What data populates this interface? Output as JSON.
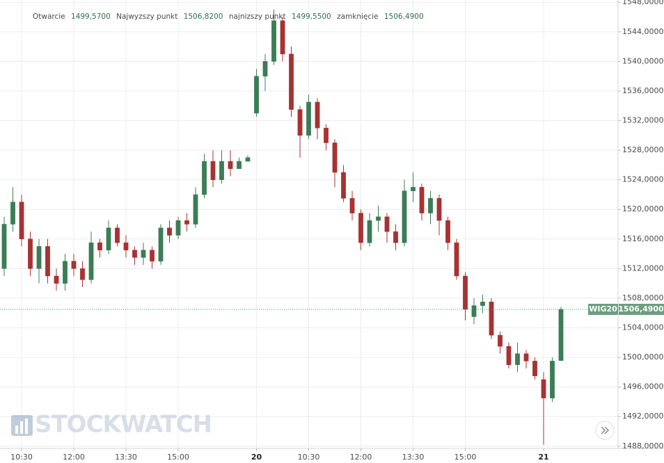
{
  "chart_data": {
    "type": "candlestick",
    "ohlc_legend": [
      {
        "label": "Otwarcie",
        "value": "1499,5700"
      },
      {
        "label": "Najwyzszy punkt",
        "value": "1506,8200"
      },
      {
        "label": "najnizszy punkt",
        "value": "1499,5500"
      },
      {
        "label": "zamknięcie",
        "value": "1506,4900"
      }
    ],
    "open": [
      1512,
      1518,
      1521,
      1516,
      1512,
      1515,
      1511,
      1510,
      1513,
      1512,
      1510.5,
      1515.5,
      1514.5,
      1517.5,
      1515.5,
      1514.5,
      1513.5,
      1514.5,
      1513,
      1517.5,
      1516.5,
      1518.5,
      1518,
      1522,
      1526.5,
      1524,
      1526.5,
      1525.5,
      1526.5,
      1533,
      1538,
      1540,
      1545.5,
      1541,
      1533.5,
      1530,
      1534.5,
      1531,
      1529,
      1525,
      1521.5,
      1519.5,
      1515.5,
      1518.5,
      1519,
      1517,
      1515.5,
      1522.5,
      1523,
      1519.5,
      1521.5,
      1518.5,
      1515.5,
      1511,
      1505.5,
      1507,
      1507.5,
      1503,
      1501.5,
      1499,
      1500.5,
      1499.5,
      1497,
      1494.5,
      1499.57
    ],
    "high": [
      1519,
      1523,
      1522,
      1517,
      1516,
      1516,
      1512,
      1514,
      1514,
      1513,
      1517,
      1516,
      1518.5,
      1518,
      1516.5,
      1515,
      1515.5,
      1515,
      1518,
      1518.5,
      1519,
      1519.5,
      1523,
      1527.5,
      1528,
      1528,
      1528,
      1527,
      1527.3,
      1539,
      1541,
      1547,
      1546,
      1542,
      1534,
      1535.5,
      1535,
      1531.5,
      1529.5,
      1526,
      1522.5,
      1520,
      1519.5,
      1520.5,
      1519.5,
      1518,
      1524,
      1525,
      1523.5,
      1522.5,
      1522,
      1519,
      1516,
      1511.5,
      1508,
      1508.5,
      1508,
      1503.5,
      1502,
      1502,
      1501,
      1500,
      1498,
      1500,
      1506.82
    ],
    "low": [
      1511,
      1517,
      1515,
      1511,
      1510,
      1510,
      1509,
      1509,
      1511,
      1509.5,
      1510,
      1513.5,
      1514,
      1515,
      1513.5,
      1512.5,
      1512.5,
      1512,
      1512.5,
      1515.5,
      1516,
      1517,
      1517.5,
      1521.5,
      1523,
      1523.5,
      1524.5,
      1525.5,
      1526.5,
      1532.5,
      1536,
      1539.5,
      1540,
      1532.5,
      1527,
      1529.5,
      1529.5,
      1528,
      1523,
      1521,
      1518.5,
      1514.5,
      1515,
      1517,
      1515.5,
      1514.5,
      1515,
      1521,
      1518.5,
      1518,
      1516.5,
      1514.5,
      1510.5,
      1505,
      1504.5,
      1506,
      1502.5,
      1500.5,
      1498.5,
      1498,
      1498.5,
      1497,
      1488.2,
      1494,
      1499.55
    ],
    "close": [
      1518,
      1521,
      1516,
      1512,
      1515,
      1511,
      1510,
      1513,
      1512,
      1510.5,
      1515.5,
      1514.5,
      1517.5,
      1515.5,
      1514.5,
      1513.5,
      1514.5,
      1513,
      1517.5,
      1516.5,
      1518.5,
      1518,
      1522,
      1526.5,
      1524,
      1526.5,
      1525.5,
      1526.5,
      1527,
      1538,
      1540,
      1545.5,
      1541,
      1533.5,
      1530,
      1534.5,
      1531,
      1529,
      1525,
      1521.5,
      1519.5,
      1515.5,
      1518.5,
      1519,
      1517,
      1515.5,
      1522.5,
      1523,
      1519.5,
      1521.5,
      1518.5,
      1515.5,
      1511,
      1506.5,
      1507,
      1507.5,
      1503,
      1501.5,
      1499,
      1500.5,
      1499.5,
      1497.5,
      1494.5,
      1499.5,
      1506.49
    ],
    "up_color": "#3b7d55",
    "down_color": "#a83232",
    "xlim": [
      -0.48,
      70.56
    ],
    "xticks": [
      {
        "value": 2,
        "label": "10:30"
      },
      {
        "value": 8,
        "label": "12:00"
      },
      {
        "value": 14,
        "label": "13:30"
      },
      {
        "value": 20,
        "label": "15:00"
      },
      20.5,
      {
        "value": 29,
        "label": "20"
      },
      {
        "value": 35,
        "label": "10:30"
      },
      {
        "value": 41,
        "label": "12:00"
      },
      {
        "value": 47,
        "label": "13:30"
      },
      {
        "value": 53,
        "label": "15:00"
      },
      {
        "value": 62,
        "label": "21"
      }
    ],
    "ylim": [
      1487.7,
      1548.3
    ],
    "yticks": [
      {
        "value": 1488,
        "label": "1488,0000"
      },
      {
        "value": 1492,
        "label": "1492,0000"
      },
      {
        "value": 1496,
        "label": "1496,0000"
      },
      {
        "value": 1500,
        "label": "1500,0000"
      },
      {
        "value": 1504,
        "label": "1504,0000"
      },
      {
        "value": 1508,
        "label": "1508,0000"
      },
      {
        "value": 1512,
        "label": "1512,0000"
      },
      {
        "value": 1516,
        "label": "1516,0000"
      },
      {
        "value": 1520,
        "label": "1520,0000"
      },
      {
        "value": 1524,
        "label": "1524,0000"
      },
      {
        "value": 1528,
        "label": "1528,0000"
      },
      {
        "value": 1532,
        "label": "1532,0000"
      },
      {
        "value": 1536,
        "label": "1536,0000"
      },
      {
        "value": 1540,
        "label": "1540,0000"
      },
      {
        "value": 1544,
        "label": "1544,0000"
      },
      {
        "value": 1548,
        "label": "1548,0000"
      }
    ],
    "last_price": {
      "name": "WIG20",
      "value": 1506.49,
      "label": "1506,4900"
    },
    "watermark": "STOCKWATCH",
    "grid": true
  }
}
